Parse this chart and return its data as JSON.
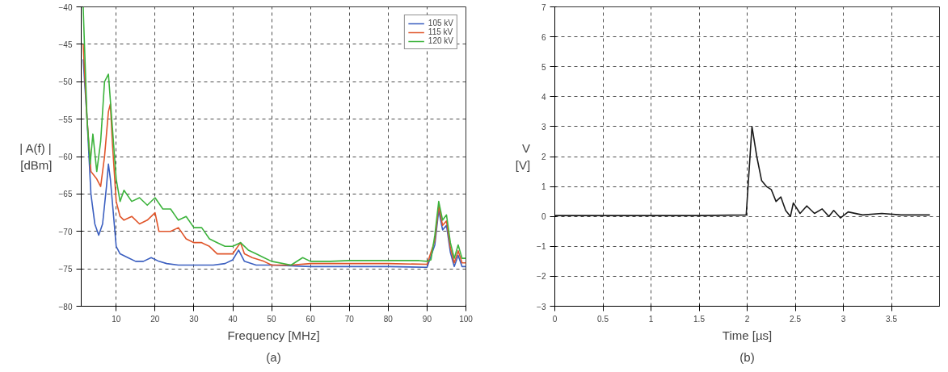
{
  "chart_data": [
    {
      "type": "line",
      "title": "(a)",
      "xlabel": "Frequency [MHz]",
      "ylabel": "| A(f) |\n[dBm]",
      "xlim": [
        1,
        100
      ],
      "ylim": [
        -80,
        -40
      ],
      "xticks": [
        10,
        20,
        30,
        40,
        50,
        60,
        70,
        80,
        90,
        100
      ],
      "yticks": [
        -80,
        -75,
        -70,
        -65,
        -60,
        -55,
        -50,
        -45,
        -40
      ],
      "grid": true,
      "legend": "top right",
      "line_style": "solid",
      "marker": "none",
      "series": [
        {
          "name": "105 kV",
          "color": "#3b5fc0",
          "x": [
            1.5,
            2.5,
            3.5,
            4.5,
            5.5,
            6.5,
            7.5,
            8,
            8.5,
            9,
            10,
            11,
            13,
            15,
            17,
            19,
            21,
            23,
            26,
            30,
            35,
            38,
            40,
            41.5,
            43,
            46,
            50,
            60,
            70,
            80,
            90,
            92,
            93,
            94,
            95,
            96,
            97,
            98,
            99,
            100
          ],
          "values": [
            -47,
            -55,
            -65,
            -69,
            -70.5,
            -69,
            -64,
            -61,
            -63,
            -66,
            -72,
            -73,
            -73.5,
            -74,
            -74,
            -73.5,
            -74,
            -74.3,
            -74.5,
            -74.5,
            -74.5,
            -74.3,
            -73.8,
            -72.5,
            -74,
            -74.5,
            -74.5,
            -74.7,
            -74.7,
            -74.7,
            -74.8,
            -71.8,
            -67.2,
            -69.8,
            -69.2,
            -72.8,
            -74.7,
            -73.2,
            -74.7,
            -74.7
          ]
        },
        {
          "name": "115 kV",
          "color": "#e0552a",
          "x": [
            1.5,
            2.5,
            3.5,
            5,
            6,
            7,
            8,
            8.5,
            9,
            10,
            11,
            12,
            14,
            16,
            18,
            20,
            21,
            24,
            26,
            28,
            30,
            32,
            34,
            36,
            38,
            40,
            42,
            43,
            45,
            48,
            50,
            55,
            60,
            70,
            80,
            90,
            92,
            93,
            94,
            95,
            96,
            97,
            98,
            99,
            100
          ],
          "values": [
            -45,
            -55,
            -62,
            -63,
            -64,
            -60,
            -54,
            -53,
            -58,
            -66,
            -68,
            -68.5,
            -68,
            -69,
            -68.5,
            -67.5,
            -70,
            -70,
            -69.5,
            -71,
            -71.5,
            -71.5,
            -72,
            -73,
            -73,
            -73,
            -71.5,
            -73,
            -73.5,
            -74,
            -74.5,
            -74.5,
            -74.3,
            -74.3,
            -74.3,
            -74.4,
            -71.2,
            -66.6,
            -69.2,
            -68.6,
            -72.2,
            -74.2,
            -72.6,
            -74.2,
            -74.2
          ]
        },
        {
          "name": "120 kV",
          "color": "#3cb33c",
          "x": [
            1.5,
            2.5,
            3.3,
            4,
            5,
            6,
            7,
            8,
            9,
            10,
            11,
            12,
            14,
            16,
            18,
            20,
            22,
            24,
            26,
            28,
            30,
            32,
            34,
            36,
            38,
            40,
            42,
            44,
            46,
            48,
            50,
            55,
            58,
            60,
            65,
            70,
            80,
            88,
            90,
            91,
            92,
            93,
            94,
            95,
            96,
            97,
            98,
            99,
            100
          ],
          "values": [
            -40,
            -55,
            -61,
            -57,
            -62,
            -58,
            -50,
            -49,
            -56,
            -63,
            -66,
            -64.5,
            -66,
            -65.5,
            -66.5,
            -65.5,
            -67,
            -67,
            -68.5,
            -68,
            -69.5,
            -69.5,
            -71,
            -71.5,
            -72,
            -72,
            -71.5,
            -72.5,
            -73,
            -73.5,
            -74,
            -74.5,
            -73.5,
            -74,
            -74.0,
            -73.9,
            -73.9,
            -73.9,
            -74.0,
            -73.8,
            -70.5,
            -66,
            -68.5,
            -67.8,
            -71.5,
            -73.6,
            -71.8,
            -73.6,
            -73.6
          ]
        }
      ]
    },
    {
      "type": "line",
      "title": "(b)",
      "xlabel": "Time [µs]",
      "ylabel": "V\n[V]",
      "xlim": [
        0,
        4
      ],
      "ylim": [
        -3,
        7
      ],
      "xticks": [
        0,
        0.5,
        1,
        1.5,
        2,
        2.5,
        3,
        3.5
      ],
      "yticks": [
        -3,
        -2,
        -1,
        0,
        1,
        2,
        3,
        4,
        5,
        6,
        7
      ],
      "grid": true,
      "legend": false,
      "line_style": "solid",
      "marker": "none",
      "series": [
        {
          "color": "#1a1a1a",
          "x": [
            0,
            0.5,
            1,
            1.5,
            1.99,
            2.05,
            2.1,
            2.15,
            2.2,
            2.25,
            2.3,
            2.35,
            2.4,
            2.45,
            2.48,
            2.55,
            2.62,
            2.7,
            2.78,
            2.85,
            2.9,
            2.97,
            3.05,
            3.2,
            3.4,
            3.6,
            3.9
          ],
          "values": [
            0.03,
            0.03,
            0.03,
            0.03,
            0.05,
            3.0,
            2.0,
            1.2,
            1.0,
            0.9,
            0.5,
            0.65,
            0.2,
            0.0,
            0.45,
            0.1,
            0.35,
            0.1,
            0.25,
            0.0,
            0.2,
            -0.05,
            0.15,
            0.05,
            0.1,
            0.05,
            0.05
          ]
        }
      ]
    }
  ]
}
